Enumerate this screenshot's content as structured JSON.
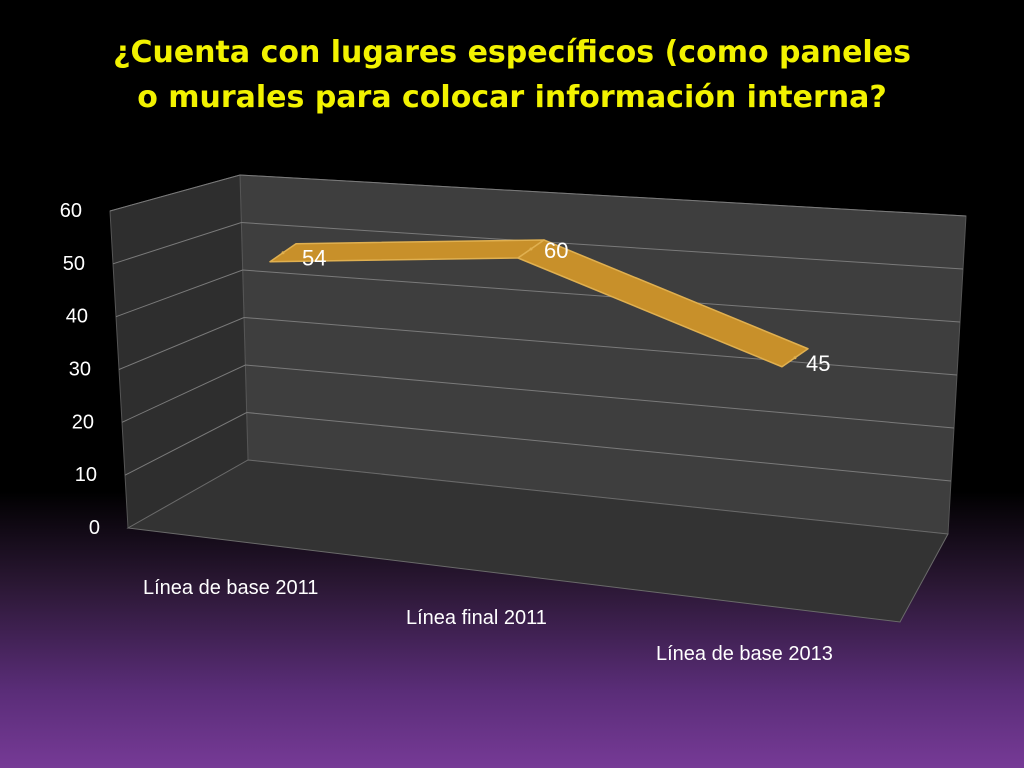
{
  "chart_data": {
    "type": "line",
    "title": "¿Cuenta con lugares específicos (como paneles o murales para colocar información interna?",
    "categories": [
      "Línea de base 2011",
      "Línea final 2011",
      "Línea de base 2013"
    ],
    "series": [
      {
        "values": [
          54,
          60,
          45
        ]
      }
    ],
    "data_labels": [
      "54",
      "60",
      "45"
    ],
    "ylim": [
      0,
      60
    ],
    "yticks": [
      0,
      10,
      20,
      30,
      40,
      50,
      60
    ],
    "ytick_labels": [
      "0",
      "10",
      "20",
      "30",
      "40",
      "50",
      "60"
    ],
    "grid": true,
    "three_d": true,
    "legend": "none",
    "colors": {
      "line": "#c8902a",
      "line_top": "#e0b050",
      "text": "#ffffff",
      "title": "#f2f200",
      "grid": "#7a7a7a",
      "back_wall": "#3e3e3e",
      "side_wall": "#2e2e2e",
      "floor": "#333333"
    }
  }
}
